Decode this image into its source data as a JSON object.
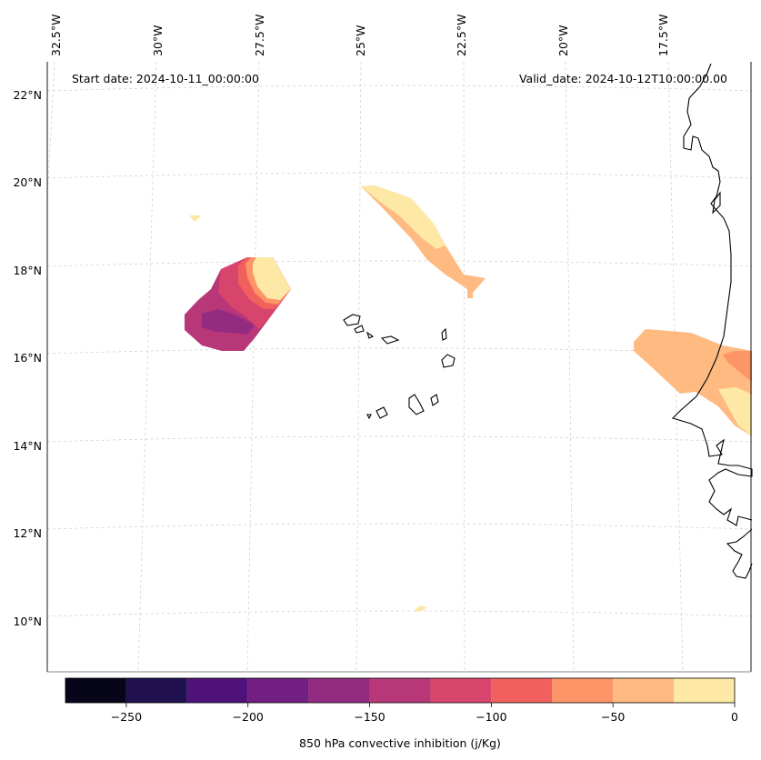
{
  "map": {
    "start_date": "Start date: 2024-10-11_00:00:00",
    "valid_date": "Valid_date: 2024-10-12T10:00:00.00",
    "lon_labels": [
      "32.5°W",
      "30°W",
      "27.5°W",
      "25°W",
      "22.5°W",
      "20°W",
      "17.5°W"
    ],
    "lat_labels": [
      "22°N",
      "20°N",
      "18°N",
      "16°N",
      "14°N",
      "12°N",
      "10°N"
    ]
  },
  "colorbar": {
    "label": "850 hPa convective inhibition (j/Kg)",
    "ticks": [
      "−250",
      "−200",
      "−150",
      "−100",
      "−50",
      "0"
    ],
    "levels": [
      -275,
      -250,
      -225,
      -200,
      -175,
      -150,
      -125,
      -100,
      -75,
      -50,
      -25,
      0
    ],
    "colors": [
      "#06051a",
      "#221150",
      "#4f127b",
      "#721f81",
      "#932b80",
      "#b73779",
      "#d8456c",
      "#f1605d",
      "#fd9567",
      "#feba80",
      "#fde8a6"
    ]
  }
}
